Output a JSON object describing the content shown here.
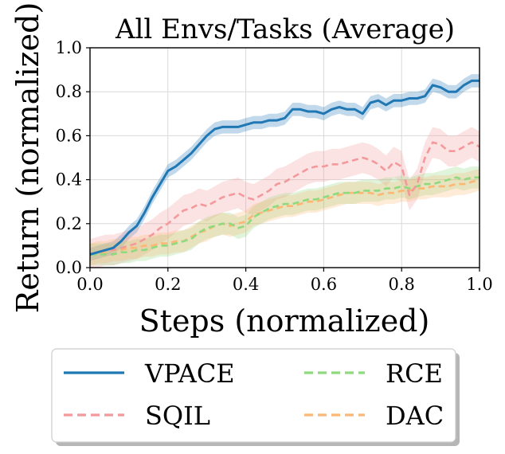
{
  "chart_data": {
    "type": "line",
    "title": "All Envs/Tasks (Average)",
    "xlabel": "Steps (normalized)",
    "ylabel": "Return (normalized)",
    "xlim": [
      0,
      1
    ],
    "ylim": [
      0,
      1
    ],
    "xticks": [
      "0.0",
      "0.2",
      "0.4",
      "0.6",
      "0.8",
      "1.0"
    ],
    "yticks": [
      "0.0",
      "0.2",
      "0.4",
      "0.6",
      "0.8",
      "1.0"
    ],
    "grid": true,
    "legend_position": "bottom, outside plot, 2 columns",
    "x": [
      0.0,
      0.02,
      0.04,
      0.06,
      0.08,
      0.1,
      0.12,
      0.14,
      0.16,
      0.18,
      0.2,
      0.22,
      0.24,
      0.26,
      0.28,
      0.3,
      0.32,
      0.34,
      0.36,
      0.38,
      0.4,
      0.42,
      0.44,
      0.46,
      0.48,
      0.5,
      0.52,
      0.54,
      0.56,
      0.58,
      0.6,
      0.62,
      0.64,
      0.66,
      0.68,
      0.7,
      0.72,
      0.74,
      0.76,
      0.78,
      0.8,
      0.82,
      0.84,
      0.86,
      0.88,
      0.9,
      0.92,
      0.94,
      0.96,
      0.98,
      1.0
    ],
    "series": [
      {
        "name": "VPACE",
        "color": "#1f77b4",
        "dash": "solid",
        "values": [
          0.06,
          0.07,
          0.08,
          0.09,
          0.12,
          0.16,
          0.19,
          0.25,
          0.32,
          0.38,
          0.44,
          0.46,
          0.49,
          0.52,
          0.56,
          0.6,
          0.63,
          0.64,
          0.64,
          0.64,
          0.65,
          0.66,
          0.66,
          0.67,
          0.67,
          0.68,
          0.72,
          0.72,
          0.71,
          0.71,
          0.7,
          0.72,
          0.73,
          0.72,
          0.72,
          0.7,
          0.75,
          0.76,
          0.74,
          0.76,
          0.76,
          0.77,
          0.77,
          0.78,
          0.83,
          0.82,
          0.8,
          0.8,
          0.83,
          0.85,
          0.85
        ],
        "band": 0.03
      },
      {
        "name": "SQIL",
        "color": "#f4999b",
        "dash": "dashed",
        "values": [
          0.06,
          0.07,
          0.08,
          0.08,
          0.09,
          0.1,
          0.11,
          0.13,
          0.15,
          0.18,
          0.2,
          0.23,
          0.26,
          0.27,
          0.29,
          0.28,
          0.3,
          0.32,
          0.33,
          0.34,
          0.32,
          0.31,
          0.33,
          0.35,
          0.38,
          0.39,
          0.41,
          0.43,
          0.45,
          0.46,
          0.46,
          0.47,
          0.47,
          0.48,
          0.49,
          0.5,
          0.49,
          0.47,
          0.44,
          0.48,
          0.46,
          0.33,
          0.38,
          0.5,
          0.57,
          0.56,
          0.53,
          0.53,
          0.55,
          0.57,
          0.55
        ],
        "band": 0.07
      },
      {
        "name": "RCE",
        "color": "#8fd97e",
        "dash": "dashed",
        "values": [
          0.06,
          0.06,
          0.06,
          0.06,
          0.07,
          0.07,
          0.08,
          0.08,
          0.09,
          0.1,
          0.1,
          0.11,
          0.12,
          0.13,
          0.16,
          0.18,
          0.19,
          0.2,
          0.2,
          0.18,
          0.19,
          0.23,
          0.25,
          0.27,
          0.28,
          0.29,
          0.29,
          0.3,
          0.31,
          0.31,
          0.32,
          0.33,
          0.34,
          0.34,
          0.34,
          0.35,
          0.35,
          0.35,
          0.36,
          0.36,
          0.37,
          0.36,
          0.37,
          0.38,
          0.38,
          0.39,
          0.4,
          0.41,
          0.4,
          0.41,
          0.41
        ],
        "band": 0.05
      },
      {
        "name": "DAC",
        "color": "#fbb773",
        "dash": "dashed",
        "values": [
          0.06,
          0.07,
          0.07,
          0.08,
          0.08,
          0.09,
          0.09,
          0.1,
          0.1,
          0.11,
          0.11,
          0.12,
          0.12,
          0.14,
          0.16,
          0.17,
          0.19,
          0.2,
          0.19,
          0.2,
          0.21,
          0.24,
          0.25,
          0.26,
          0.27,
          0.28,
          0.28,
          0.29,
          0.3,
          0.3,
          0.31,
          0.32,
          0.33,
          0.34,
          0.34,
          0.34,
          0.34,
          0.33,
          0.34,
          0.34,
          0.35,
          0.35,
          0.36,
          0.36,
          0.37,
          0.37,
          0.37,
          0.38,
          0.38,
          0.39,
          0.4
        ],
        "band": 0.05
      }
    ]
  },
  "legend": {
    "items": [
      {
        "label": "VPACE",
        "color": "#1f77b4",
        "dash": "solid"
      },
      {
        "label": "RCE",
        "color": "#8fd97e",
        "dash": "dashed"
      },
      {
        "label": "SQIL",
        "color": "#f4999b",
        "dash": "dashed"
      },
      {
        "label": "DAC",
        "color": "#fbb773",
        "dash": "dashed"
      }
    ]
  }
}
